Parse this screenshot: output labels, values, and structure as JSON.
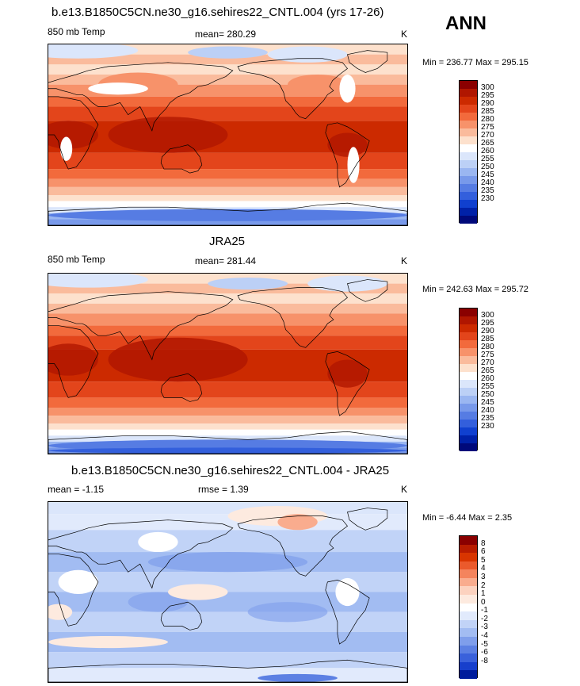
{
  "season": "ANN",
  "palette_abs": [
    "#8a0000",
    "#b01600",
    "#cc2a00",
    "#e3451b",
    "#f26a3c",
    "#f7926a",
    "#fabb9c",
    "#fde1cd",
    "#ffffff",
    "#dbe6fb",
    "#bcd0f6",
    "#9ab6f1",
    "#7899ea",
    "#567ce3",
    "#335fdc",
    "#1040cf",
    "#0021a8",
    "#00097a"
  ],
  "palette_diff": [
    "#8a0000",
    "#b81c00",
    "#d83500",
    "#eb5a2c",
    "#f4845d",
    "#f9ac8e",
    "#fcd2bf",
    "#fdeadf",
    "#ffffff",
    "#e1eafc",
    "#c1d3f7",
    "#a2bcf2",
    "#7f9eeb",
    "#5c80e3",
    "#3a61db",
    "#173fcc",
    "#001c9c"
  ],
  "panel1": {
    "title": "b.e13.B1850C5CN.ne30_g16.sehires22_CNTL.004 (yrs 17-26)",
    "left": "850 mb Temp",
    "center": "mean= 280.29",
    "unit": "K",
    "minmax": "Min = 236.77 Max = 295.15",
    "ticks": [
      "300",
      "295",
      "290",
      "285",
      "280",
      "275",
      "270",
      "265",
      "260",
      "255",
      "250",
      "245",
      "240",
      "235",
      "230"
    ]
  },
  "panel2": {
    "title": "JRA25",
    "left": "850 mb Temp",
    "center": "mean= 281.44",
    "unit": "K",
    "minmax": "Min = 242.63 Max = 295.72",
    "ticks": [
      "300",
      "295",
      "290",
      "285",
      "280",
      "275",
      "270",
      "265",
      "260",
      "255",
      "250",
      "245",
      "240",
      "235",
      "230"
    ]
  },
  "panel3": {
    "title": "b.e13.B1850C5CN.ne30_g16.sehires22_CNTL.004 - JRA25",
    "left": "mean =  -1.15",
    "center": "rmse =   1.39",
    "unit": "K",
    "minmax": "Min =  -6.44 Max =   2.35",
    "ticks": [
      "8",
      "6",
      "5",
      "4",
      "3",
      "2",
      "1",
      "0",
      "-1",
      "-2",
      "-3",
      "-4",
      "-5",
      "-6",
      "-8"
    ]
  }
}
